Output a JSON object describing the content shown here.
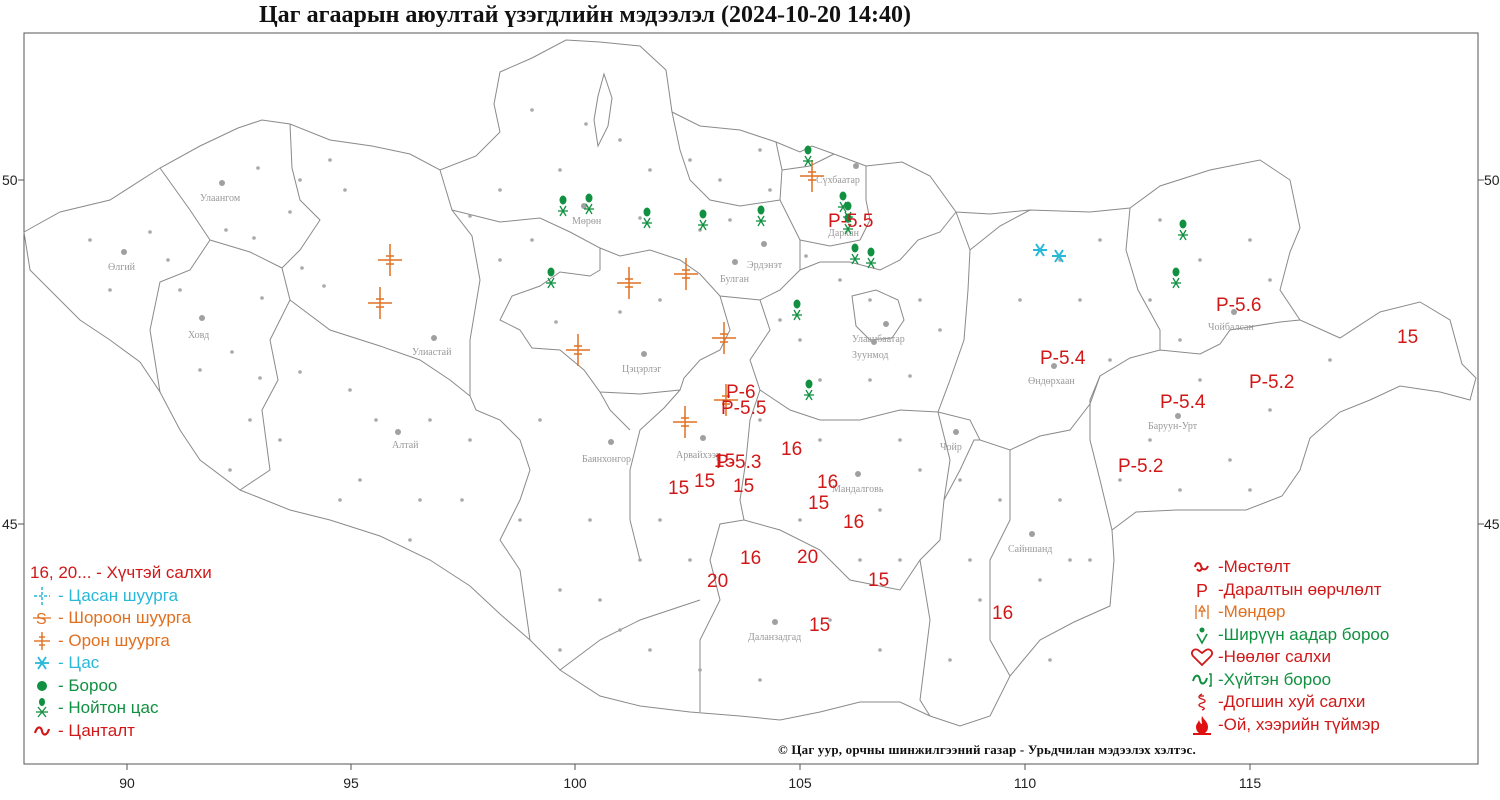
{
  "title": "Цаг агаарын аюултай үзэгдлийн мэдээлэл (2024-10-20 14:40)",
  "x_axis_ticks": [
    "90",
    "95",
    "100",
    "105",
    "110",
    "115"
  ],
  "y_axis_ticks_left": [
    "50",
    "45"
  ],
  "y_axis_ticks_right": [
    "50",
    "45"
  ],
  "cities": [
    {
      "name": "Улаангом"
    },
    {
      "name": "Өлгий"
    },
    {
      "name": "Ховд"
    },
    {
      "name": "Улиастай"
    },
    {
      "name": "Алтай"
    },
    {
      "name": "Мөрөн"
    },
    {
      "name": "Эрдэнэт"
    },
    {
      "name": "Булган"
    },
    {
      "name": "Сүхбаатар"
    },
    {
      "name": "Дархан"
    },
    {
      "name": "Цэцэрлэг"
    },
    {
      "name": "Улаанбаатар"
    },
    {
      "name": "Зуунмод"
    },
    {
      "name": "Өндөрхаан"
    },
    {
      "name": "Чойбалсан"
    },
    {
      "name": "Баруун-Урт"
    },
    {
      "name": "Баянхонгор"
    },
    {
      "name": "Арвайхээр"
    },
    {
      "name": "Мандалговь"
    },
    {
      "name": "Чойр"
    },
    {
      "name": "Сайншанд"
    },
    {
      "name": "Даланзадгад"
    }
  ],
  "strong_wind_labels": [
    {
      "value": "15"
    },
    {
      "value": "15"
    },
    {
      "value": "15"
    },
    {
      "value": "15"
    },
    {
      "value": "16"
    },
    {
      "value": "16"
    },
    {
      "value": "15"
    },
    {
      "value": "16"
    },
    {
      "value": "16"
    },
    {
      "value": "20"
    },
    {
      "value": "20"
    },
    {
      "value": "15"
    },
    {
      "value": "15"
    },
    {
      "value": "16"
    },
    {
      "value": "15"
    }
  ],
  "pressure_labels": [
    {
      "value": "P-5.5"
    },
    {
      "value": "P-6"
    },
    {
      "value": "P-5.5"
    },
    {
      "value": "P-5.3"
    },
    {
      "value": "P-5.4"
    },
    {
      "value": "P-5.6"
    },
    {
      "value": "P-5.2"
    },
    {
      "value": "P-5.4"
    },
    {
      "value": "P-5.2"
    }
  ],
  "legend_left": [
    {
      "symbol": "none",
      "text": "16, 20... - Хүчтэй салхи",
      "color": "#d01818"
    },
    {
      "symbol": "snowstorm-icon",
      "text": "- Цасан шуурга",
      "color": "#28b8d8"
    },
    {
      "symbol": "duststorm-icon",
      "text": "- Шороон шуурга",
      "color": "#e07020"
    },
    {
      "symbol": "blizzard-icon",
      "text": "- Орон шуурга",
      "color": "#e07020"
    },
    {
      "symbol": "snow-icon",
      "text": "- Цас",
      "color": "#28b8d8"
    },
    {
      "symbol": "rain-dot-icon",
      "text": "- Бороо",
      "color": "#109040"
    },
    {
      "symbol": "sleet-icon",
      "text": "- Нойтон цас",
      "color": "#109040"
    },
    {
      "symbol": "drifting-icon",
      "text": "- Цанталт",
      "color": "#d01818"
    }
  ],
  "legend_right": [
    {
      "symbol": "frost-icon",
      "text": "-Мөстөлт",
      "color": "#d01818"
    },
    {
      "symbol": "pressure-icon",
      "text": "-Даралтын өөрчлөлт",
      "color": "#d01818"
    },
    {
      "symbol": "hail-icon",
      "text": "-Мөндөр",
      "color": "#e07020"
    },
    {
      "symbol": "heavy-rain-icon",
      "text": "-Ширүүн аадар бороо",
      "color": "#109040"
    },
    {
      "symbol": "foehn-icon",
      "text": "-Нөөлөг салхи",
      "color": "#d01818"
    },
    {
      "symbol": "cold-rain-icon",
      "text": "-Хүйтэн бороо",
      "color": "#109040"
    },
    {
      "symbol": "whirlwind-icon",
      "text": "-Догшин хуй салхи",
      "color": "#d01818"
    },
    {
      "symbol": "fire-icon",
      "text": "-Ой, хээрийн түймэр",
      "color": "#d01818"
    }
  ],
  "credit": "© Цаг уур, орчны шинжилгээний газар - Урьдчилан мэдээлэх хэлтэс.",
  "colors": {
    "strong_wind": "#d01818",
    "snowstorm": "#28b8d8",
    "duststorm": "#e07020",
    "rain": "#109040",
    "border": "#8a8a8a",
    "station": "#a8a8a8"
  }
}
